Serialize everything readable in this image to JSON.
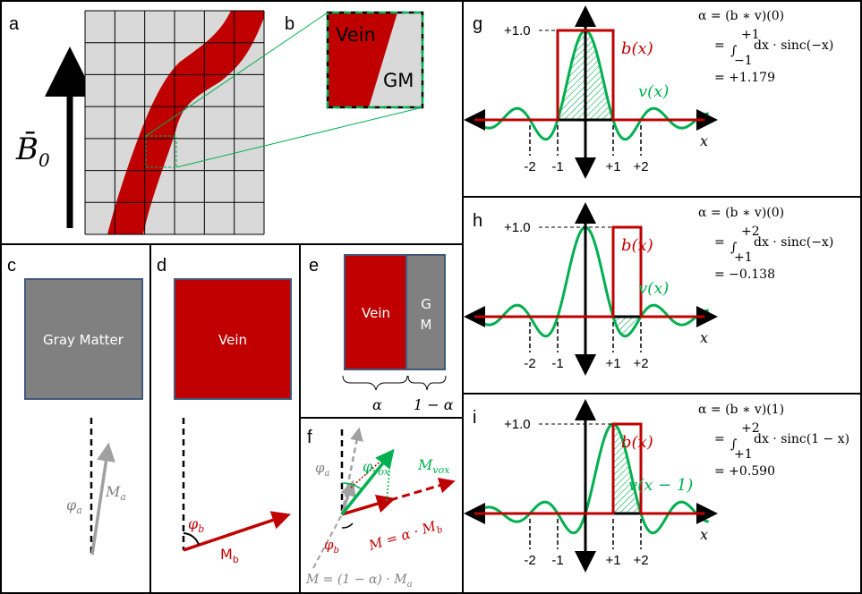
{
  "panel_labels": {
    "a": "a",
    "b": "b",
    "c": "c",
    "d": "d",
    "e": "e",
    "f": "f",
    "g": "g",
    "h": "h",
    "i": "i"
  },
  "colors": {
    "vein": "#c00000",
    "gray_matter": "#808080",
    "green": "#00b050",
    "grid_bg": "#d9d9d9",
    "box_border": "#41597a"
  },
  "panel_a": {
    "field_label": "B̄",
    "field_subscript": "0"
  },
  "panel_b": {
    "vein_label": "Vein",
    "gm_label": "GM"
  },
  "panel_c": {
    "box_label": "Gray Matter",
    "phase_label": "φ",
    "phase_sub": "a",
    "moment_label": "M",
    "moment_sub": "a"
  },
  "panel_d": {
    "box_label": "Vein",
    "phase_label": "φ",
    "phase_sub": "b",
    "moment_label": "M",
    "moment_sub": "b"
  },
  "panel_e": {
    "vein_label": "Vein",
    "gm_line1": "G",
    "gm_line2": "M",
    "alpha_label": "α",
    "one_minus_alpha_label": "1 − α"
  },
  "panel_f": {
    "phase_a": "φ",
    "phase_a_sub": "a",
    "phase_vox": "φ",
    "phase_vox_sub": "vox",
    "m_vox": "M",
    "m_vox_sub": "vox",
    "phase_b": "φ",
    "phase_b_sub": "b",
    "m_b_eq": "M = α · M",
    "m_b_sub": "b",
    "m_a_eq": "M = (1 − α) · M",
    "m_a_sub": "a"
  },
  "plots": [
    {
      "label": "g",
      "y_marker": "+1.0",
      "box_label": "b(x)",
      "sinc_label": "v(x)",
      "x_label": "x",
      "tick_labels": [
        "-2",
        "-1",
        "+1",
        "+2"
      ],
      "eq_line1": "α = (b ∗ v)(0)",
      "eq_line2_prefix": "=",
      "eq_upper": "+1",
      "eq_lower": "−1",
      "eq_integrand": "dx · sinc(−x)",
      "eq_result": "= +1.179",
      "box_range": [
        -1,
        1
      ],
      "sinc_shift": 0
    },
    {
      "label": "h",
      "y_marker": "+1.0",
      "box_label": "b(x)",
      "sinc_label": "v(x)",
      "x_label": "x",
      "tick_labels": [
        "-2",
        "-1",
        "+1",
        "+2"
      ],
      "eq_line1": "α = (b ∗ v)(0)",
      "eq_line2_prefix": "=",
      "eq_upper": "+2",
      "eq_lower": "+1",
      "eq_integrand": "dx · sinc(−x)",
      "eq_result": "= −0.138",
      "box_range": [
        1,
        2
      ],
      "sinc_shift": 0
    },
    {
      "label": "i",
      "y_marker": "+1.0",
      "box_label": "b(x)",
      "sinc_label": "v(x − 1)",
      "x_label": "x",
      "tick_labels": [
        "-2",
        "-1",
        "+1",
        "+2"
      ],
      "eq_line1": "α = (b ∗ v)(1)",
      "eq_line2_prefix": "=",
      "eq_upper": "+2",
      "eq_lower": "+1",
      "eq_integrand": "dx · sinc(1 − x)",
      "eq_result": "= +0.590",
      "box_range": [
        1,
        2
      ],
      "sinc_shift": 1
    }
  ]
}
